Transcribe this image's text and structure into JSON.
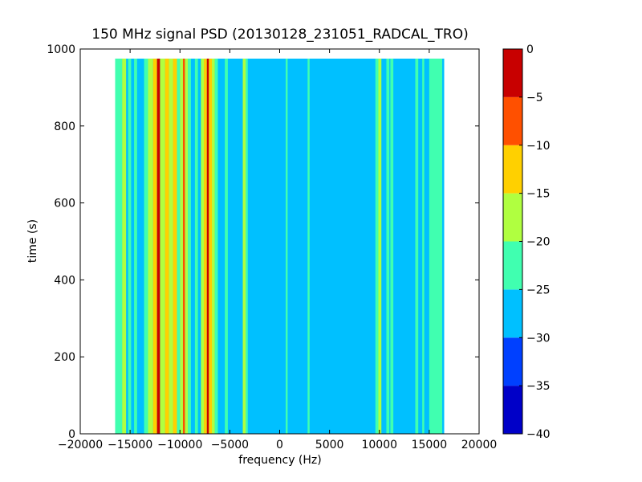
{
  "chart_data": {
    "type": "heatmap",
    "title": "150 MHz signal PSD (20130128_231051_RADCAL_TRO)",
    "xlabel": "frequency (Hz)",
    "ylabel": "time (s)",
    "xlim": [
      -20000,
      20000
    ],
    "ylim": [
      0,
      1000
    ],
    "x_ticks": [
      -20000,
      -15000,
      -10000,
      -5000,
      0,
      5000,
      10000,
      15000,
      20000
    ],
    "x_tick_labels": [
      "−20000",
      "−15000",
      "−10000",
      "−5000",
      "0",
      "5000",
      "10000",
      "15000",
      "20000"
    ],
    "y_ticks": [
      0,
      200,
      400,
      600,
      800,
      1000
    ],
    "y_tick_labels": [
      "0",
      "200",
      "400",
      "600",
      "800",
      "1000"
    ],
    "data_x_range": [
      -16500,
      16500
    ],
    "data_y_range": [
      0,
      975
    ],
    "grid": false,
    "colorbar": {
      "levels": [
        -40,
        -35,
        -30,
        -25,
        -20,
        -15,
        -10,
        -5,
        0
      ],
      "tick_labels": [
        "−40",
        "−35",
        "−30",
        "−25",
        "−20",
        "−15",
        "−10",
        "−5",
        "0"
      ],
      "colors": [
        "#0000c8",
        "#0040ff",
        "#00c0ff",
        "#40ffb0",
        "#b0ff40",
        "#ffd000",
        "#ff5000",
        "#c80000"
      ]
    },
    "background_level": -27.5,
    "bands": [
      {
        "x0": -16500,
        "x1": -15800,
        "level": -22.5
      },
      {
        "x0": -15800,
        "x1": -15400,
        "level": -17.5
      },
      {
        "x0": -15200,
        "x1": -14900,
        "level": -22.5
      },
      {
        "x0": -14600,
        "x1": -14300,
        "level": -22.5
      },
      {
        "x0": -13600,
        "x1": -13200,
        "level": -22.5
      },
      {
        "x0": -13200,
        "x1": -12700,
        "level": -17.5
      },
      {
        "x0": -12700,
        "x1": -12300,
        "level": -12.5
      },
      {
        "x0": -12300,
        "x1": -12000,
        "level": -2.5
      },
      {
        "x0": -12000,
        "x1": -11500,
        "level": -17.5
      },
      {
        "x0": -11500,
        "x1": -11100,
        "level": -12.5
      },
      {
        "x0": -11100,
        "x1": -10700,
        "level": -17.5
      },
      {
        "x0": -10700,
        "x1": -10300,
        "level": -12.5
      },
      {
        "x0": -10300,
        "x1": -10000,
        "level": -22.5
      },
      {
        "x0": -10000,
        "x1": -9700,
        "level": -17.5
      },
      {
        "x0": -9700,
        "x1": -9500,
        "level": -7.5
      },
      {
        "x0": -9500,
        "x1": -9200,
        "level": -17.5
      },
      {
        "x0": -9200,
        "x1": -8900,
        "level": -22.5
      },
      {
        "x0": -8500,
        "x1": -8200,
        "level": -22.5
      },
      {
        "x0": -7900,
        "x1": -7600,
        "level": -17.5
      },
      {
        "x0": -7600,
        "x1": -7300,
        "level": -12.5
      },
      {
        "x0": -7300,
        "x1": -7100,
        "level": -2.5
      },
      {
        "x0": -7100,
        "x1": -6800,
        "level": -12.5
      },
      {
        "x0": -6800,
        "x1": -6500,
        "level": -17.5
      },
      {
        "x0": -6500,
        "x1": -6200,
        "level": -22.5
      },
      {
        "x0": -5500,
        "x1": -5200,
        "level": -22.5
      },
      {
        "x0": -3700,
        "x1": -3400,
        "level": -17.5
      },
      {
        "x0": -3400,
        "x1": -3200,
        "level": -22.5
      },
      {
        "x0": 600,
        "x1": 800,
        "level": -22.5
      },
      {
        "x0": 2800,
        "x1": 3000,
        "level": -22.5
      },
      {
        "x0": 9600,
        "x1": 9900,
        "level": -22.5
      },
      {
        "x0": 9900,
        "x1": 10200,
        "level": -17.5
      },
      {
        "x0": 10700,
        "x1": 11000,
        "level": -22.5
      },
      {
        "x0": 11100,
        "x1": 11400,
        "level": -22.5
      },
      {
        "x0": 13600,
        "x1": 13900,
        "level": -22.5
      },
      {
        "x0": 14300,
        "x1": 14500,
        "level": -22.5
      },
      {
        "x0": 15000,
        "x1": 16300,
        "level": -22.5
      }
    ]
  }
}
